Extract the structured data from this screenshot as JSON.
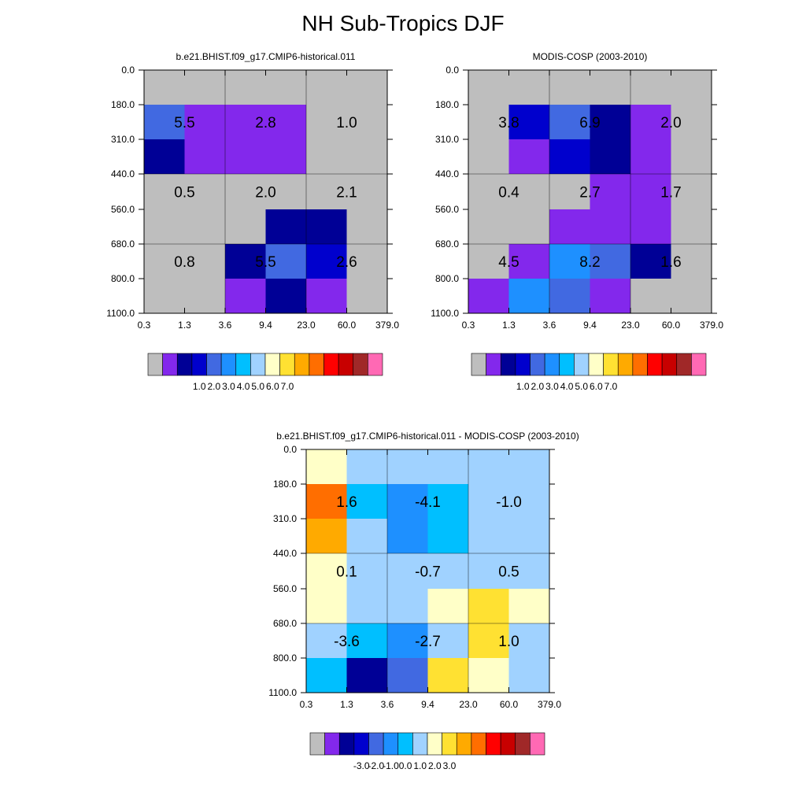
{
  "page_title": "NH Sub-Tropics DJF",
  "palette": [
    "#bebebe",
    "#8328ec",
    "#000096",
    "#0000cd",
    "#4169e1",
    "#1e90ff",
    "#00bfff",
    "#a0d2ff",
    "#ffffc8",
    "#ffe132",
    "#ffaa00",
    "#ff6e00",
    "#ff0000",
    "#c80000",
    "#a02828",
    "#ff69b4"
  ],
  "chart_data": [
    {
      "type": "heatmap",
      "title": "b.e21.BHIST.f09_g17.CMIP6-historical.011",
      "x_tick_labels": [
        "0.3",
        "1.3",
        "3.6",
        "9.4",
        "23.0",
        "60.0",
        "379.0"
      ],
      "y_tick_labels": [
        "0.0",
        "180.0",
        "310.0",
        "440.0",
        "560.0",
        "680.0",
        "800.0",
        "1100.0"
      ],
      "cell_color_index": [
        [
          0,
          0,
          0,
          0,
          0,
          0
        ],
        [
          4,
          1,
          1,
          1,
          0,
          0
        ],
        [
          2,
          1,
          1,
          1,
          0,
          0
        ],
        [
          0,
          0,
          0,
          0,
          0,
          0
        ],
        [
          0,
          0,
          0,
          2,
          2,
          0
        ],
        [
          0,
          0,
          2,
          4,
          3,
          0
        ],
        [
          0,
          0,
          1,
          2,
          1,
          0
        ]
      ],
      "box_values": [
        [
          "5.5",
          "2.8",
          "1.0"
        ],
        [
          "0.5",
          "2.0",
          "2.1"
        ],
        [
          "0.8",
          "5.5",
          "2.6"
        ]
      ],
      "colorbar_labels": [
        "1.0",
        "2.0",
        "3.0",
        "4.0",
        "5.0",
        "6.0",
        "7.0"
      ]
    },
    {
      "type": "heatmap",
      "title": "MODIS-COSP (2003-2010)",
      "x_tick_labels": [
        "0.3",
        "1.3",
        "3.6",
        "9.4",
        "23.0",
        "60.0",
        "379.0"
      ],
      "y_tick_labels": [
        "0.0",
        "180.0",
        "310.0",
        "440.0",
        "560.0",
        "680.0",
        "800.0",
        "1100.0"
      ],
      "cell_color_index": [
        [
          0,
          0,
          0,
          0,
          0,
          0
        ],
        [
          0,
          3,
          4,
          2,
          1,
          0
        ],
        [
          0,
          1,
          3,
          2,
          1,
          0
        ],
        [
          0,
          0,
          0,
          1,
          1,
          0
        ],
        [
          0,
          0,
          1,
          1,
          1,
          0
        ],
        [
          0,
          1,
          5,
          4,
          2,
          0
        ],
        [
          1,
          5,
          4,
          1,
          0,
          0
        ]
      ],
      "box_values": [
        [
          "3.8",
          "6.9",
          "2.0"
        ],
        [
          "0.4",
          "2.7",
          "1.7"
        ],
        [
          "4.5",
          "8.2",
          "1.6"
        ]
      ],
      "colorbar_labels": [
        "1.0",
        "2.0",
        "3.0",
        "4.0",
        "5.0",
        "6.0",
        "7.0"
      ]
    },
    {
      "type": "heatmap",
      "title": "b.e21.BHIST.f09_g17.CMIP6-historical.011 - MODIS-COSP (2003-2010)",
      "x_tick_labels": [
        "0.3",
        "1.3",
        "3.6",
        "9.4",
        "23.0",
        "60.0",
        "379.0"
      ],
      "y_tick_labels": [
        "0.0",
        "180.0",
        "310.0",
        "440.0",
        "560.0",
        "680.0",
        "800.0",
        "1100.0"
      ],
      "cell_color_index": [
        [
          8,
          7,
          7,
          7,
          7,
          7
        ],
        [
          11,
          6,
          5,
          6,
          7,
          7
        ],
        [
          10,
          7,
          5,
          6,
          7,
          7
        ],
        [
          8,
          7,
          7,
          7,
          7,
          7
        ],
        [
          8,
          7,
          7,
          8,
          9,
          8
        ],
        [
          7,
          6,
          5,
          7,
          9,
          7
        ],
        [
          6,
          2,
          4,
          9,
          8,
          7
        ]
      ],
      "box_values": [
        [
          "1.6",
          "-4.1",
          "-1.0"
        ],
        [
          "0.1",
          "-0.7",
          "0.5"
        ],
        [
          "-3.6",
          "-2.7",
          "1.0"
        ]
      ],
      "colorbar_labels": [
        "-3.0",
        "-2.0",
        "-1.0",
        "0.0",
        "1.0",
        "2.0",
        "3.0"
      ]
    }
  ]
}
